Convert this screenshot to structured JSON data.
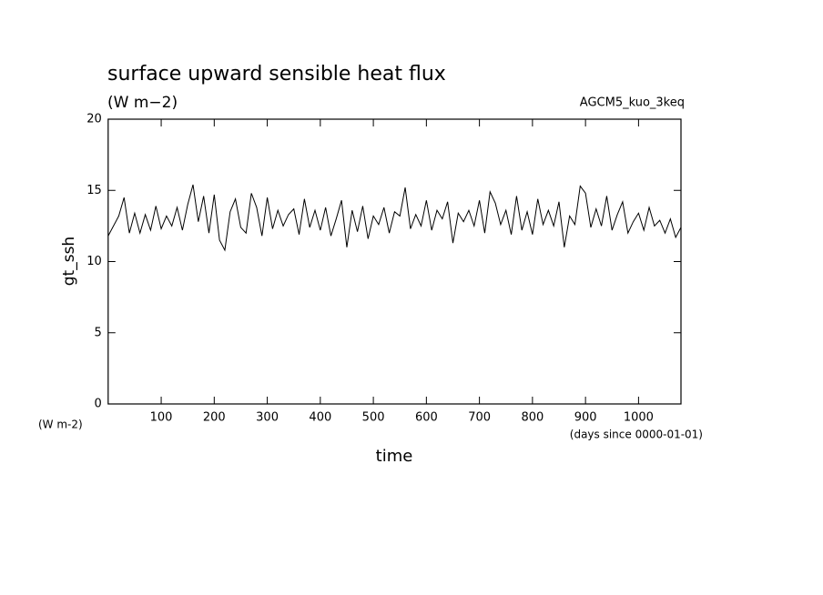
{
  "chart_data": {
    "type": "line",
    "title": "surface upward sensible heat flux",
    "subtitle": "(W m−2)",
    "annotation": "AGCM5_kuo_3keq",
    "y_label": "gt_ssh",
    "y_unit": "(W m-2)",
    "x_label": "time",
    "x_unit": "(days since 0000-01-01)",
    "xlim": [
      0,
      1080
    ],
    "ylim": [
      0,
      20
    ],
    "xticks": [
      100,
      200,
      300,
      400,
      500,
      600,
      700,
      800,
      900,
      1000
    ],
    "yticks": [
      0,
      5,
      10,
      15,
      20
    ],
    "grid": false,
    "x": [
      0,
      10,
      20,
      30,
      40,
      50,
      60,
      70,
      80,
      90,
      100,
      110,
      120,
      130,
      140,
      150,
      160,
      170,
      180,
      190,
      200,
      210,
      220,
      230,
      240,
      250,
      260,
      270,
      280,
      290,
      300,
      310,
      320,
      330,
      340,
      350,
      360,
      370,
      380,
      390,
      400,
      410,
      420,
      430,
      440,
      450,
      460,
      470,
      480,
      490,
      500,
      510,
      520,
      530,
      540,
      550,
      560,
      570,
      580,
      590,
      600,
      610,
      620,
      630,
      640,
      650,
      660,
      670,
      680,
      690,
      700,
      710,
      720,
      730,
      740,
      750,
      760,
      770,
      780,
      790,
      800,
      810,
      820,
      830,
      840,
      850,
      860,
      870,
      880,
      890,
      900,
      910,
      920,
      930,
      940,
      950,
      960,
      970,
      980,
      990,
      1000,
      1010,
      1020,
      1030,
      1040,
      1050,
      1060,
      1070,
      1080
    ],
    "series": [
      {
        "color": "#000000",
        "values": [
          11.8,
          12.5,
          13.2,
          14.5,
          12.0,
          13.4,
          12.0,
          13.3,
          12.2,
          13.9,
          12.3,
          13.2,
          12.5,
          13.8,
          12.2,
          14.0,
          15.4,
          12.8,
          14.6,
          12.0,
          14.7,
          11.5,
          10.8,
          13.5,
          14.4,
          12.4,
          12.0,
          14.8,
          13.8,
          11.8,
          14.5,
          12.3,
          13.6,
          12.5,
          13.3,
          13.7,
          11.9,
          14.4,
          12.4,
          13.6,
          12.2,
          13.8,
          11.8,
          13.0,
          14.3,
          11.0,
          13.6,
          12.1,
          13.9,
          11.6,
          13.2,
          12.6,
          13.8,
          12.0,
          13.5,
          13.2,
          15.2,
          12.3,
          13.3,
          12.5,
          14.3,
          12.2,
          13.6,
          13.0,
          14.2,
          11.3,
          13.4,
          12.8,
          13.6,
          12.5,
          14.3,
          12.0,
          14.9,
          14.1,
          12.6,
          13.6,
          11.9,
          14.6,
          12.2,
          13.5,
          11.9,
          14.4,
          12.6,
          13.6,
          12.5,
          14.2,
          11.0,
          13.2,
          12.6,
          15.3,
          14.8,
          12.4,
          13.7,
          12.5,
          14.6,
          12.2,
          13.3,
          14.2,
          12.0,
          12.8,
          13.4,
          12.2,
          13.8,
          12.5,
          12.9,
          12.0,
          13.0,
          11.7,
          12.4
        ]
      }
    ]
  }
}
